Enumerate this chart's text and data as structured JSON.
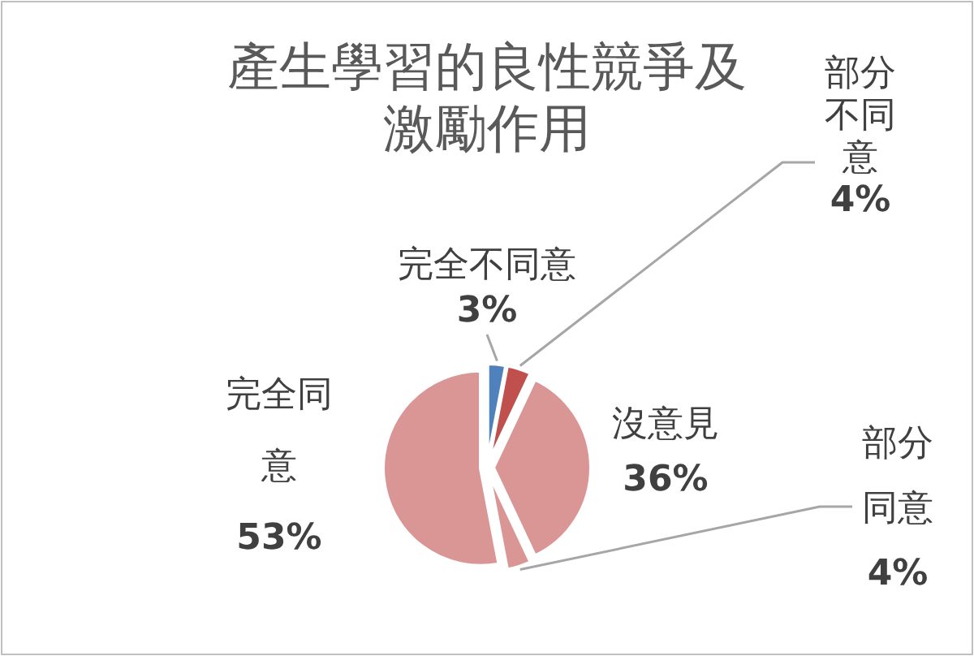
{
  "chart_data": {
    "type": "pie",
    "title": "產生學習的良性競爭及激勵作用",
    "categories": [
      "完全不同意",
      "部分不同意",
      "沒意見",
      "部分同意",
      "完全同意"
    ],
    "values": [
      3,
      4,
      36,
      4,
      53
    ],
    "value_labels": [
      "3%",
      "4%",
      "36%",
      "4%",
      "53%"
    ],
    "colors": [
      "#4f81bd",
      "#c0504d",
      "#d99694",
      "#d99694",
      "#d99694"
    ]
  }
}
